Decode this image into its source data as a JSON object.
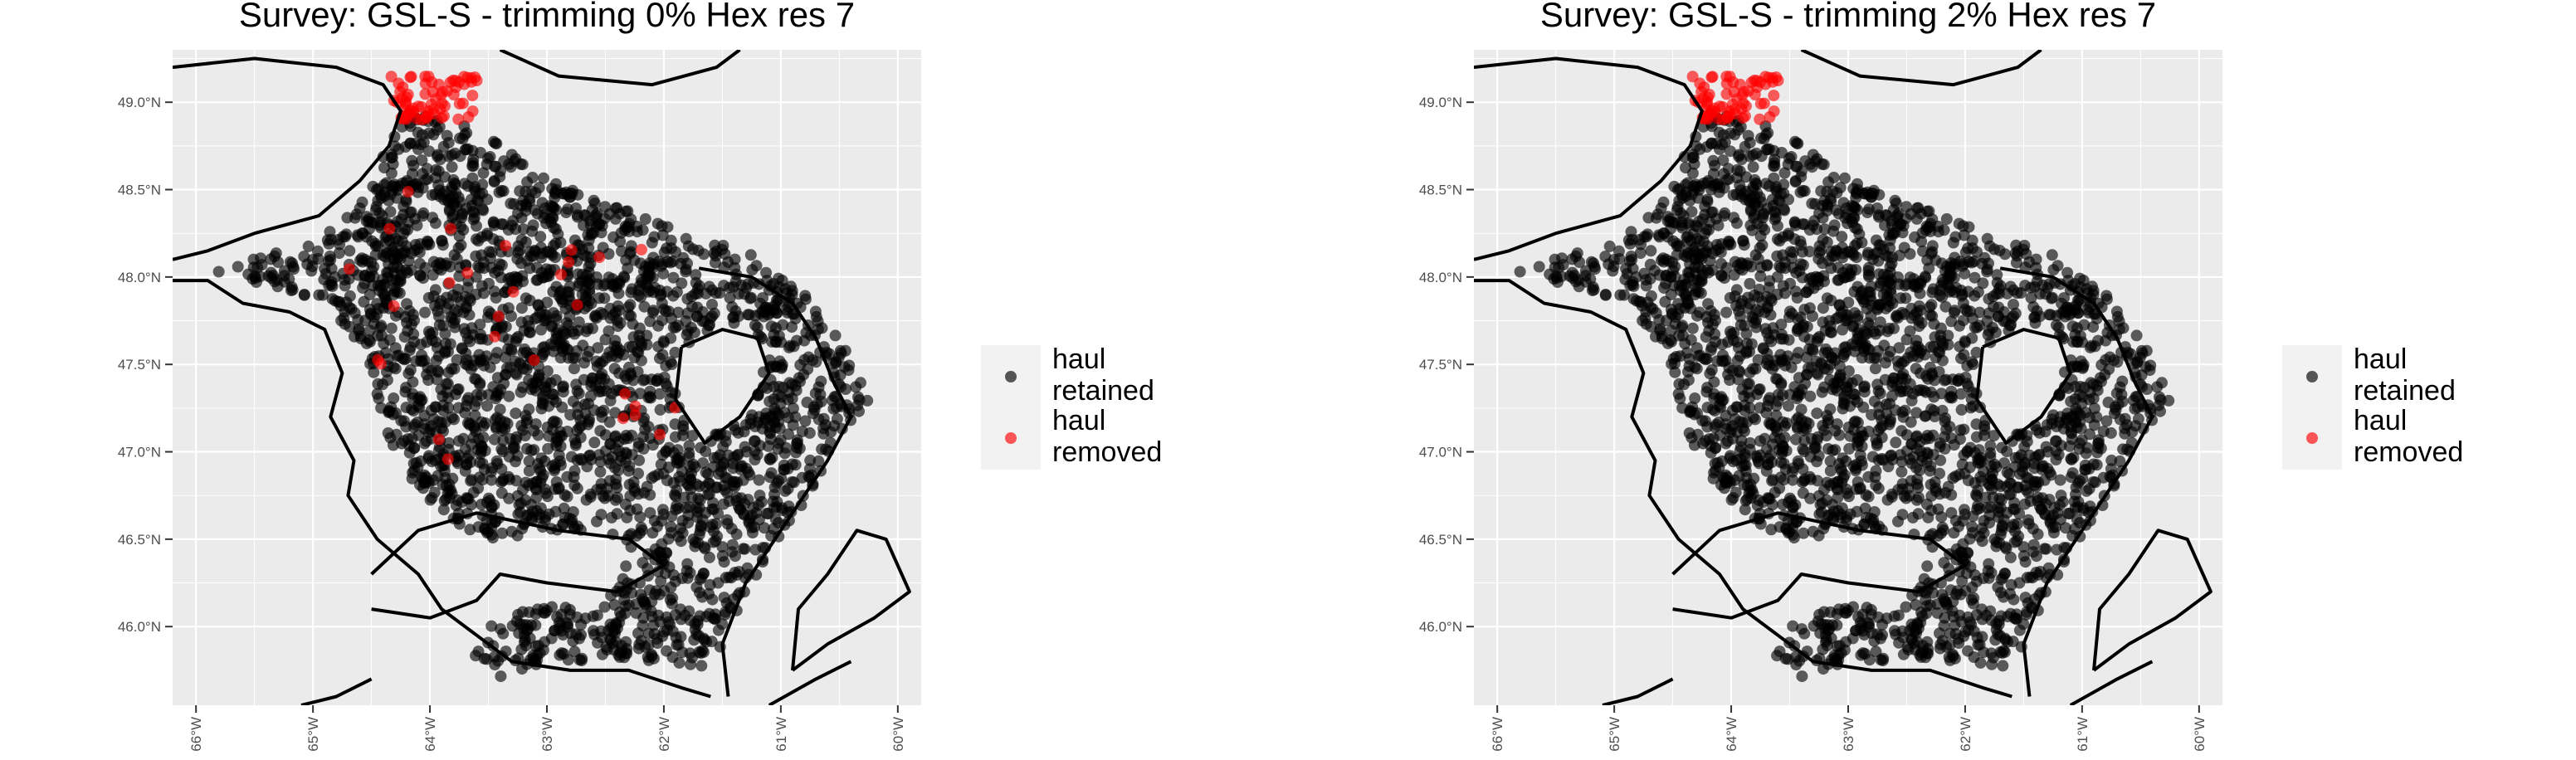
{
  "figure": {
    "panels": [
      {
        "title": "Survey: GSL-S - trimming 0% Hex res 7",
        "legend": {
          "items": [
            {
              "label_line1": "haul",
              "label_line2": "retained",
              "color": "#000000"
            },
            {
              "label_line1": "haul",
              "label_line2": "removed",
              "color": "#ff0000"
            }
          ]
        }
      },
      {
        "title": "Survey: GSL-S - trimming 2% Hex res 7",
        "legend": {
          "items": [
            {
              "label_line1": "haul",
              "label_line2": "retained",
              "color": "#000000"
            },
            {
              "label_line1": "haul",
              "label_line2": "removed",
              "color": "#ff0000"
            }
          ]
        }
      }
    ],
    "panel_background": "#ebebeb",
    "gridline_color": "#ffffff",
    "coastline_color": "#000000"
  },
  "chart_data": [
    {
      "type": "scatter",
      "title": "Survey: GSL-S - trimming 0% Hex res 7",
      "xlim": [
        -66.2,
        -59.8
      ],
      "ylim": [
        45.55,
        49.3
      ],
      "x_ticks": [
        "66°W",
        "65°W",
        "64°W",
        "63°W",
        "62°W",
        "61°W",
        "60°W"
      ],
      "y_ticks": [
        "46.0°N",
        "46.5°N",
        "47.0°N",
        "47.5°N",
        "48.0°N",
        "48.5°N",
        "49.0°N"
      ],
      "legend": "right",
      "grid": true,
      "series": [
        {
          "name": "haul retained",
          "color": "#000000"
        },
        {
          "name": "haul removed",
          "color": "#ff0000"
        }
      ]
    },
    {
      "type": "scatter",
      "title": "Survey: GSL-S - trimming 2% Hex res 7",
      "xlim": [
        -66.2,
        -59.8
      ],
      "ylim": [
        45.55,
        49.3
      ],
      "x_ticks": [
        "66°W",
        "65°W",
        "64°W",
        "63°W",
        "62°W",
        "61°W",
        "60°W"
      ],
      "y_ticks": [
        "46.0°N",
        "46.5°N",
        "47.0°N",
        "47.5°N",
        "48.0°N",
        "48.5°N",
        "49.0°N"
      ],
      "legend": "right",
      "grid": true,
      "series": [
        {
          "name": "haul retained",
          "color": "#000000"
        },
        {
          "name": "haul removed",
          "color": "#ff0000"
        }
      ]
    }
  ]
}
